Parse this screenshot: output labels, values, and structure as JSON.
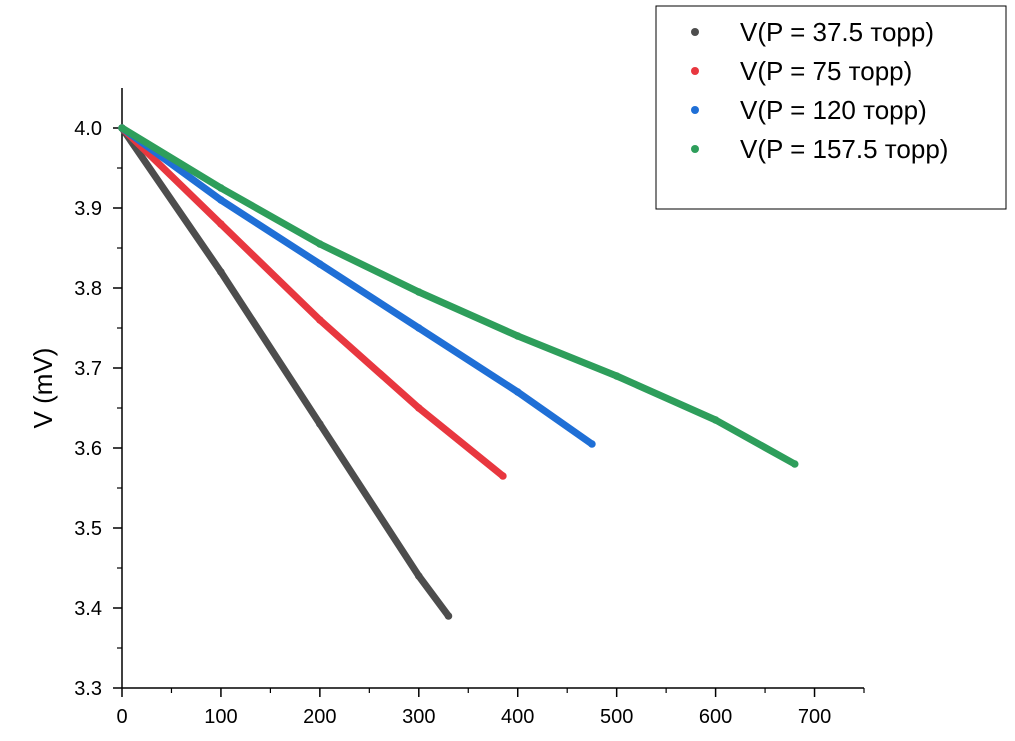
{
  "chart_data": {
    "type": "scatter",
    "title": "",
    "xlabel": "",
    "ylabel": "V (mV)",
    "xlim": [
      0,
      750
    ],
    "ylim": [
      3.3,
      4.05
    ],
    "x_ticks": [
      0,
      100,
      200,
      300,
      400,
      500,
      600,
      700
    ],
    "y_ticks": [
      3.3,
      3.4,
      3.5,
      3.6,
      3.7,
      3.8,
      3.9,
      4.0
    ],
    "x_tick_labels": [
      "0",
      "100",
      "200",
      "300",
      "400",
      "500",
      "600",
      "700"
    ],
    "y_tick_labels": [
      "3.3",
      "3.4",
      "3.5",
      "3.6",
      "3.7",
      "3.8",
      "3.9",
      "4.0"
    ],
    "grid": false,
    "legend_position": "top-right",
    "series": [
      {
        "name": "V(P = 37.5 торр)",
        "color": "#4d4d4d",
        "x": [
          0,
          100,
          200,
          300,
          330
        ],
        "y": [
          4.0,
          3.82,
          3.63,
          3.44,
          3.39
        ]
      },
      {
        "name": "V(P = 75 торр)",
        "color": "#e8373f",
        "x": [
          0,
          100,
          200,
          300,
          385
        ],
        "y": [
          4.0,
          3.88,
          3.76,
          3.65,
          3.565
        ]
      },
      {
        "name": "V(P = 120 торр)",
        "color": "#1f6fd6",
        "x": [
          0,
          100,
          200,
          300,
          400,
          475
        ],
        "y": [
          4.0,
          3.91,
          3.83,
          3.75,
          3.67,
          3.605
        ]
      },
      {
        "name": "V(P = 157.5 торр)",
        "color": "#2e9e5b",
        "x": [
          0,
          100,
          200,
          300,
          400,
          500,
          600,
          680
        ],
        "y": [
          4.0,
          3.925,
          3.855,
          3.795,
          3.74,
          3.69,
          3.635,
          3.58
        ]
      }
    ]
  }
}
